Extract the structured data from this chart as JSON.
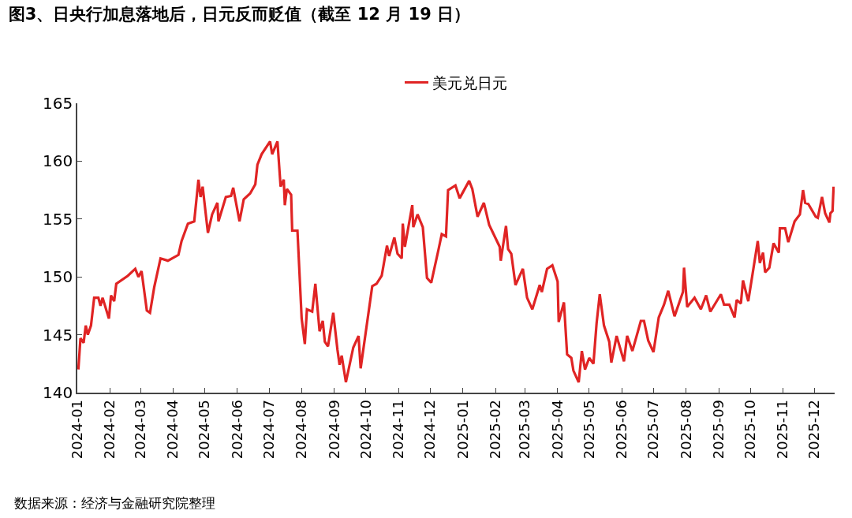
{
  "chart_data": {
    "type": "line",
    "title": "图3、日央行加息落地后，日元反而贬值（截至 12 月 19 日）",
    "annotations": [
      "数据来源：经济与金融研究院整理"
    ],
    "x": [
      "2024-01-02",
      "2024-01-04",
      "2024-01-07",
      "2024-01-09",
      "2024-01-11",
      "2024-01-14",
      "2024-01-17",
      "2024-01-21",
      "2024-01-23",
      "2024-01-25",
      "2024-01-31",
      "2024-02-02",
      "2024-02-05",
      "2024-02-07",
      "2024-02-18",
      "2024-02-25",
      "2024-02-28",
      "2024-03-02",
      "2024-03-07",
      "2024-03-10",
      "2024-03-14",
      "2024-03-20",
      "2024-03-27",
      "2024-04-06",
      "2024-04-09",
      "2024-04-15",
      "2024-04-21",
      "2024-04-25",
      "2024-04-27",
      "2024-04-29",
      "2024-05-04",
      "2024-05-08",
      "2024-05-13",
      "2024-05-14",
      "2024-05-21",
      "2024-05-26",
      "2024-05-28",
      "2024-06-03",
      "2024-06-07",
      "2024-06-13",
      "2024-06-18",
      "2024-06-20",
      "2024-06-24",
      "2024-07-02",
      "2024-07-04",
      "2024-07-09",
      "2024-07-12",
      "2024-07-15",
      "2024-07-16",
      "2024-07-18",
      "2024-07-22",
      "2024-07-23",
      "2024-07-28",
      "2024-08-01",
      "2024-08-04",
      "2024-08-06",
      "2024-08-11",
      "2024-08-14",
      "2024-08-18",
      "2024-08-21",
      "2024-08-23",
      "2024-08-26",
      "2024-08-31",
      "2024-09-04",
      "2024-09-06",
      "2024-09-08",
      "2024-09-12",
      "2024-09-19",
      "2024-09-24",
      "2024-09-26",
      "2024-10-07",
      "2024-10-11",
      "2024-10-16",
      "2024-10-21",
      "2024-10-23",
      "2024-10-28",
      "2024-10-31",
      "2024-11-04",
      "2024-11-05",
      "2024-11-07",
      "2024-11-14",
      "2024-11-15",
      "2024-11-19",
      "2024-11-24",
      "2024-11-28",
      "2024-12-02",
      "2024-12-09",
      "2024-12-12",
      "2024-12-16",
      "2024-12-18",
      "2024-12-25",
      "2024-12-29",
      "2025-01-07",
      "2025-01-10",
      "2025-01-15",
      "2025-01-21",
      "2025-01-26",
      "2025-02-05",
      "2025-02-06",
      "2025-02-11",
      "2025-02-13",
      "2025-02-16",
      "2025-02-20",
      "2025-02-27",
      "2025-03-03",
      "2025-03-08",
      "2025-03-15",
      "2025-03-17",
      "2025-03-22",
      "2025-03-27",
      "2025-04-01",
      "2025-04-02",
      "2025-04-07",
      "2025-04-10",
      "2025-04-14",
      "2025-04-16",
      "2025-04-21",
      "2025-04-24",
      "2025-04-27",
      "2025-05-01",
      "2025-05-05",
      "2025-05-08",
      "2025-05-11",
      "2025-05-15",
      "2025-05-20",
      "2025-05-22",
      "2025-05-27",
      "2025-06-03",
      "2025-06-06",
      "2025-06-11",
      "2025-06-19",
      "2025-06-22",
      "2025-06-26",
      "2025-07-01",
      "2025-07-06",
      "2025-07-11",
      "2025-07-15",
      "2025-07-21",
      "2025-07-29",
      "2025-07-30",
      "2025-08-02",
      "2025-08-09",
      "2025-08-15",
      "2025-08-20",
      "2025-08-24",
      "2025-09-03",
      "2025-09-06",
      "2025-09-11",
      "2025-09-16",
      "2025-09-18",
      "2025-09-22",
      "2025-09-24",
      "2025-09-29",
      "2025-10-08",
      "2025-10-10",
      "2025-10-13",
      "2025-10-15",
      "2025-10-19",
      "2025-10-23",
      "2025-10-28",
      "2025-10-29",
      "2025-11-03",
      "2025-11-06",
      "2025-11-12",
      "2025-11-17",
      "2025-11-20",
      "2025-11-22",
      "2025-11-25",
      "2025-12-02",
      "2025-12-04",
      "2025-12-08",
      "2025-12-11",
      "2025-12-15",
      "2025-12-16",
      "2025-12-18",
      "2025-12-19"
    ],
    "series": [
      {
        "name": "美元兑日元",
        "color": "#e02424",
        "values": [
          142.0,
          144.7,
          144.3,
          145.8,
          145.0,
          145.8,
          148.2,
          148.2,
          147.5,
          148.2,
          146.4,
          148.4,
          147.9,
          149.4,
          150.1,
          150.7,
          150.0,
          150.5,
          147.1,
          146.9,
          149.1,
          151.6,
          151.4,
          151.9,
          153.1,
          154.6,
          154.8,
          158.4,
          156.9,
          157.8,
          153.8,
          155.4,
          156.4,
          154.8,
          156.9,
          157.0,
          157.7,
          154.8,
          156.7,
          157.2,
          158.0,
          159.7,
          160.6,
          161.7,
          160.6,
          161.7,
          157.8,
          158.4,
          156.2,
          157.6,
          157.1,
          154.0,
          154.0,
          146.4,
          144.2,
          147.2,
          147.0,
          149.4,
          145.3,
          146.2,
          144.4,
          144.0,
          146.9,
          143.7,
          142.4,
          143.2,
          140.9,
          143.9,
          144.9,
          142.1,
          149.2,
          149.4,
          150.1,
          152.7,
          151.8,
          153.4,
          152.0,
          151.6,
          154.6,
          152.6,
          156.2,
          154.3,
          155.4,
          154.3,
          149.9,
          149.5,
          152.4,
          153.7,
          153.5,
          157.5,
          157.9,
          156.8,
          158.3,
          157.6,
          155.2,
          156.4,
          154.5,
          152.6,
          151.4,
          154.4,
          152.4,
          152.0,
          149.3,
          150.7,
          148.2,
          147.2,
          149.3,
          148.7,
          150.7,
          151.0,
          149.6,
          146.1,
          147.8,
          143.3,
          143.0,
          141.9,
          140.9,
          143.6,
          142.0,
          143.0,
          142.5,
          146.0,
          148.5,
          145.8,
          144.4,
          142.6,
          144.9,
          142.7,
          144.9,
          143.6,
          146.2,
          146.2,
          144.5,
          143.5,
          146.5,
          147.6,
          148.8,
          146.6,
          148.7,
          150.8,
          147.4,
          148.2,
          147.2,
          148.4,
          147.0,
          148.5,
          147.6,
          147.6,
          146.5,
          148.0,
          147.7,
          149.7,
          147.9,
          153.1,
          151.2,
          152.1,
          150.4,
          150.8,
          152.9,
          152.1,
          154.2,
          154.2,
          153.0,
          154.8,
          155.4,
          157.5,
          156.4,
          156.3,
          155.2,
          155.1,
          156.9,
          155.5,
          154.7,
          155.5,
          155.7,
          157.8
        ]
      }
    ],
    "xlim": [
      "2024-01-01",
      "2025-12-20"
    ],
    "xticks": [
      "2024-01",
      "2024-02",
      "2024-03",
      "2024-04",
      "2024-05",
      "2024-06",
      "2024-07",
      "2024-08",
      "2024-09",
      "2024-10",
      "2024-11",
      "2024-12",
      "2025-01",
      "2025-02",
      "2025-03",
      "2025-04",
      "2025-05",
      "2025-06",
      "2025-07",
      "2025-08",
      "2025-09",
      "2025-10",
      "2025-11",
      "2025-12"
    ],
    "ylim": [
      140,
      165
    ],
    "yticks": [
      140,
      145,
      150,
      155,
      160,
      165
    ],
    "legend": "top",
    "marker": "none",
    "line_style": "solid"
  }
}
